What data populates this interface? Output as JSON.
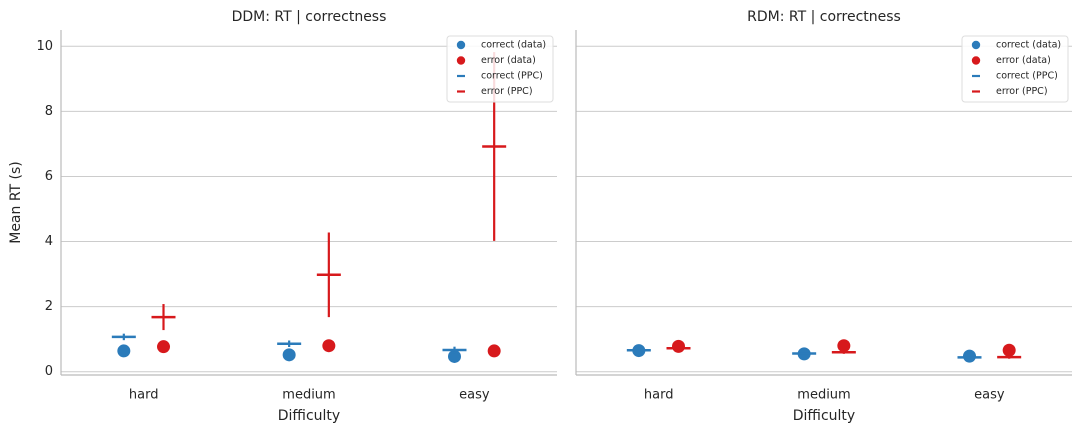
{
  "chart_data": [
    {
      "type": "point",
      "title": "DDM: RT | correctness",
      "xlabel": "Difficulty",
      "ylabel": "Mean RT (s)",
      "categories": [
        "hard",
        "medium",
        "easy"
      ],
      "ylim": [
        -0.1,
        10.5
      ],
      "yticks": [
        0,
        2,
        4,
        6,
        8,
        10
      ],
      "grid": true,
      "show_ytick_labels": true,
      "legend": "upper right",
      "series": [
        {
          "name": "correct (data)",
          "color": "#2b7bba",
          "marker": "dot",
          "offset": -0.12,
          "values": [
            0.64,
            0.52,
            0.47
          ]
        },
        {
          "name": "error (data)",
          "color": "#d7191c",
          "marker": "dot",
          "offset": 0.12,
          "values": [
            0.77,
            0.8,
            0.64
          ]
        },
        {
          "name": "correct (PPC)",
          "color": "#2b7bba",
          "marker": "dash",
          "offset": -0.12,
          "values": [
            1.07,
            0.86,
            0.67
          ],
          "errors": [
            0.1,
            0.1,
            0.1
          ]
        },
        {
          "name": "error (PPC)",
          "color": "#d7191c",
          "marker": "dash",
          "offset": 0.12,
          "values": [
            1.68,
            2.98,
            6.92
          ],
          "errors": [
            0.4,
            1.3,
            2.9
          ]
        }
      ]
    },
    {
      "type": "point",
      "title": "RDM: RT | correctness",
      "xlabel": "Difficulty",
      "categories": [
        "hard",
        "medium",
        "easy"
      ],
      "ylim": [
        -0.1,
        10.5
      ],
      "yticks": [
        0,
        2,
        4,
        6,
        8,
        10
      ],
      "grid": true,
      "show_ytick_labels": false,
      "legend": "upper right",
      "series": [
        {
          "name": "correct (data)",
          "color": "#2b7bba",
          "marker": "dot",
          "offset": -0.12,
          "values": [
            0.65,
            0.55,
            0.48
          ]
        },
        {
          "name": "error (data)",
          "color": "#d7191c",
          "marker": "dot",
          "offset": 0.12,
          "values": [
            0.78,
            0.8,
            0.66
          ]
        },
        {
          "name": "correct (PPC)",
          "color": "#2b7bba",
          "marker": "dash",
          "offset": -0.12,
          "values": [
            0.66,
            0.56,
            0.44
          ],
          "errors": [
            0.03,
            0.03,
            0.03
          ]
        },
        {
          "name": "error (PPC)",
          "color": "#d7191c",
          "marker": "dash",
          "offset": 0.12,
          "values": [
            0.72,
            0.6,
            0.45
          ],
          "errors": [
            0.05,
            0.05,
            0.05
          ]
        }
      ]
    }
  ]
}
